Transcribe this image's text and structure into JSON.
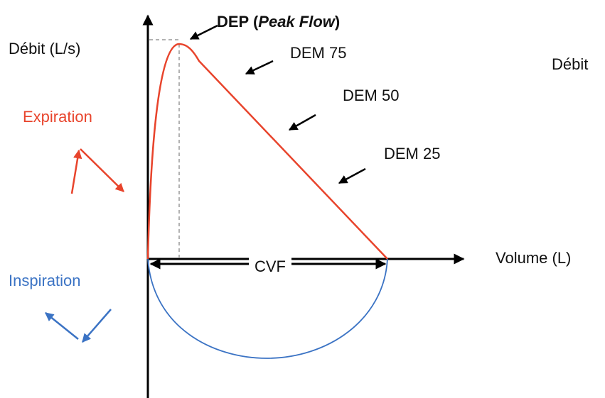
{
  "y_axis_label": "Débit (L/s)",
  "peak_label": {
    "prefix": "DEP (",
    "italic": "Peak Flow",
    "suffix": ")"
  },
  "points": [
    "DEM 75",
    "DEM 50",
    "DEM 25"
  ],
  "right_label": "Débit",
  "expiration": "Expiration",
  "inspiration": "Inspiration",
  "x_axis_label": "Volume (L)",
  "cvf": "CVF"
}
